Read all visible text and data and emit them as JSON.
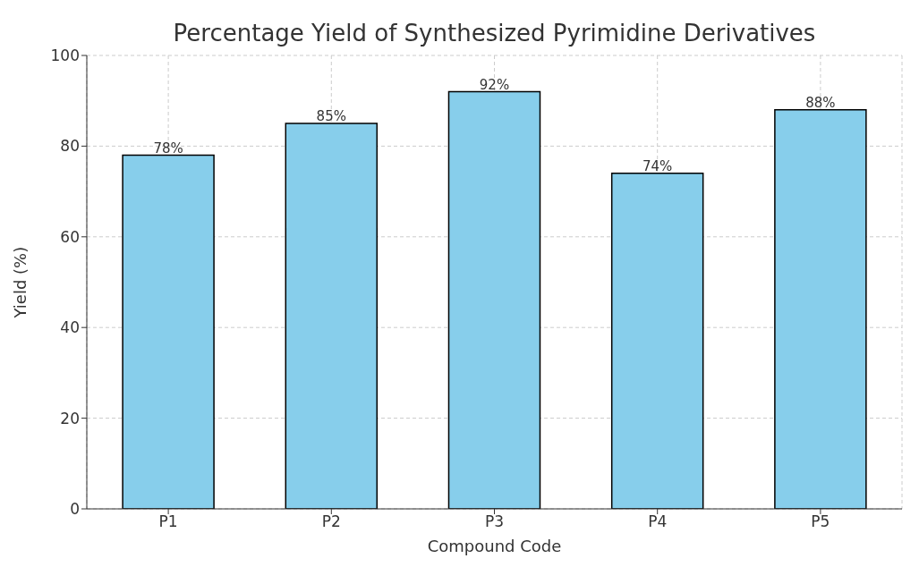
{
  "chart_data": {
    "type": "bar",
    "title": "Percentage Yield of Synthesized Pyrimidine Derivatives",
    "xlabel": "Compound Code",
    "ylabel": "Yield (%)",
    "categories": [
      "P1",
      "P2",
      "P3",
      "P4",
      "P5"
    ],
    "values": [
      78,
      85,
      92,
      74,
      88
    ],
    "value_labels": [
      "78%",
      "85%",
      "92%",
      "74%",
      "88%"
    ],
    "color": "#87ceeb",
    "ylim": [
      0,
      100
    ],
    "yticks": [
      0,
      20,
      40,
      60,
      80,
      100
    ],
    "grid": true
  }
}
